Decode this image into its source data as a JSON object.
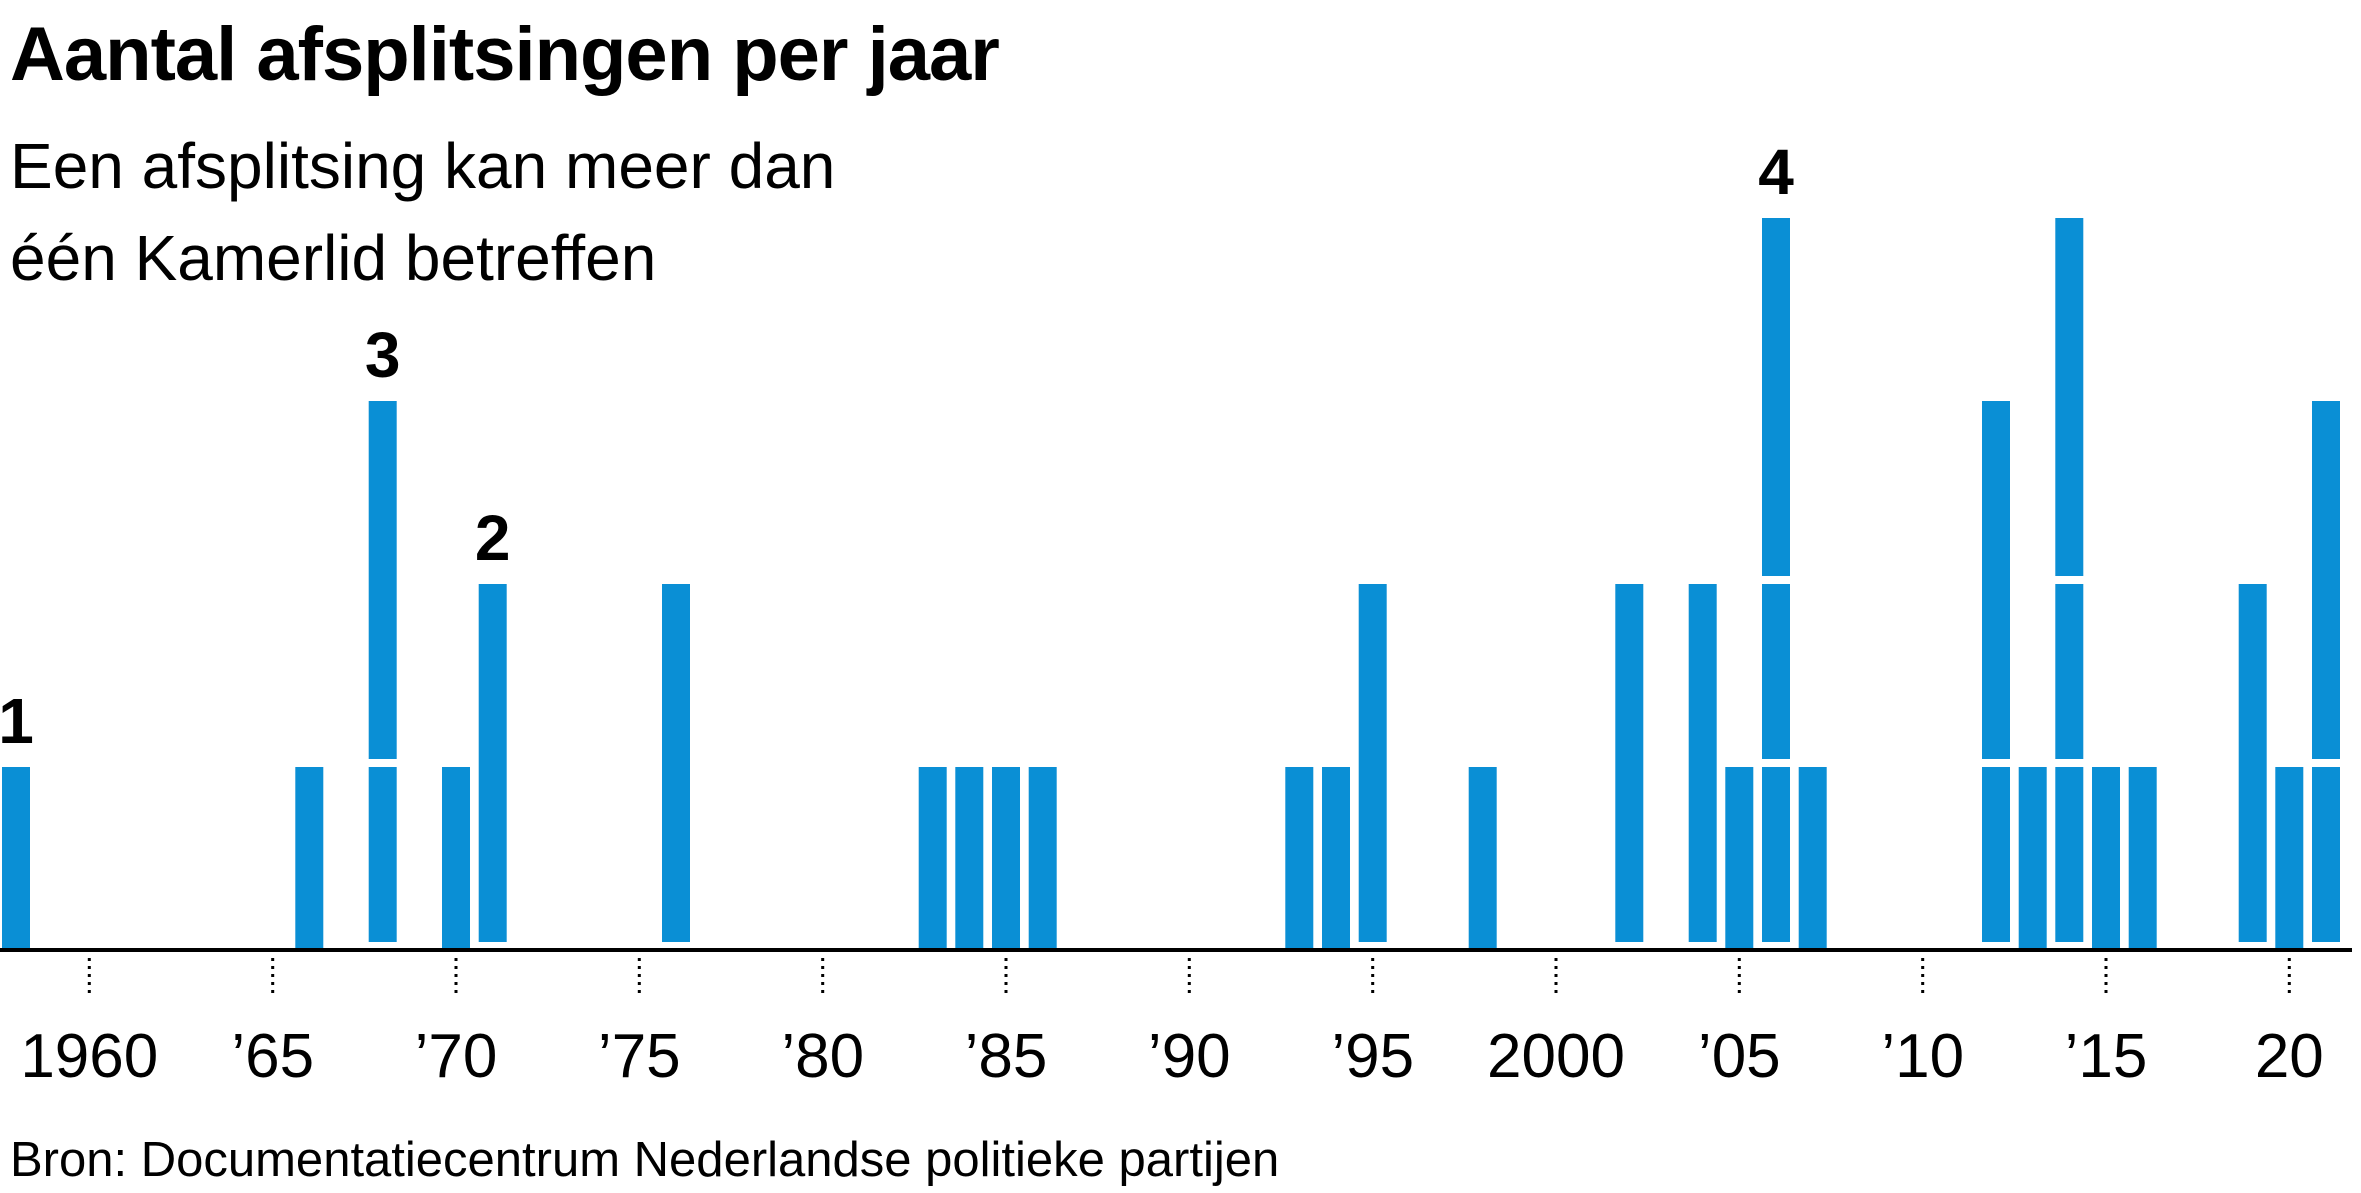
{
  "chart_data": {
    "type": "bar",
    "title": "Aantal afsplitsingen per jaar",
    "subtitle_lines": [
      "Een afsplitsing kan meer dan",
      "één Kamerlid betreffen"
    ],
    "source": "Bron: Documentatiecentrum Nederlandse politieke partijen",
    "xlabel": "",
    "ylabel": "",
    "x_range": [
      1958,
      2021
    ],
    "ylim": [
      0,
      4
    ],
    "grid": false,
    "bar_color": "#0a8fd5",
    "stacked_units": true,
    "x_tick_years": [
      1960,
      1965,
      1970,
      1975,
      1980,
      1985,
      1990,
      1995,
      2000,
      2005,
      2010,
      2015,
      2020
    ],
    "x_tick_labels": [
      "1960",
      "’65",
      "’70",
      "’75",
      "’80",
      "’85",
      "’90",
      "’95",
      "2000",
      "’05",
      "’10",
      "’15",
      "20"
    ],
    "data": [
      {
        "year": 1958,
        "value": 1
      },
      {
        "year": 1966,
        "value": 1
      },
      {
        "year": 1968,
        "value": 3
      },
      {
        "year": 1970,
        "value": 1
      },
      {
        "year": 1971,
        "value": 2
      },
      {
        "year": 1976,
        "value": 2
      },
      {
        "year": 1983,
        "value": 1
      },
      {
        "year": 1984,
        "value": 1
      },
      {
        "year": 1985,
        "value": 1
      },
      {
        "year": 1986,
        "value": 1
      },
      {
        "year": 1993,
        "value": 1
      },
      {
        "year": 1994,
        "value": 1
      },
      {
        "year": 1995,
        "value": 2
      },
      {
        "year": 1998,
        "value": 1
      },
      {
        "year": 2002,
        "value": 2
      },
      {
        "year": 2004,
        "value": 2
      },
      {
        "year": 2005,
        "value": 1
      },
      {
        "year": 2006,
        "value": 4
      },
      {
        "year": 2007,
        "value": 1
      },
      {
        "year": 2012,
        "value": 3
      },
      {
        "year": 2013,
        "value": 1
      },
      {
        "year": 2014,
        "value": 4
      },
      {
        "year": 2015,
        "value": 1
      },
      {
        "year": 2016,
        "value": 1
      },
      {
        "year": 2019,
        "value": 2
      },
      {
        "year": 2020,
        "value": 1
      },
      {
        "year": 2021,
        "value": 3
      }
    ],
    "value_labels": [
      {
        "year": 1958,
        "text": "1"
      },
      {
        "year": 1968,
        "text": "3"
      },
      {
        "year": 1971,
        "text": "2"
      },
      {
        "year": 2006,
        "text": "4"
      }
    ]
  }
}
